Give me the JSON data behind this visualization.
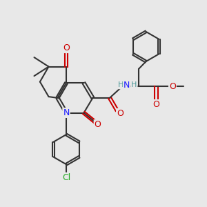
{
  "background_color": "#e8e8e8",
  "bond_color": "#333333",
  "atom_colors": {
    "N": "#1a1aff",
    "O": "#cc0000",
    "Cl": "#22aa22",
    "H": "#4d9999",
    "C": "#333333"
  },
  "figsize": [
    3.0,
    3.0
  ],
  "dpi": 100
}
